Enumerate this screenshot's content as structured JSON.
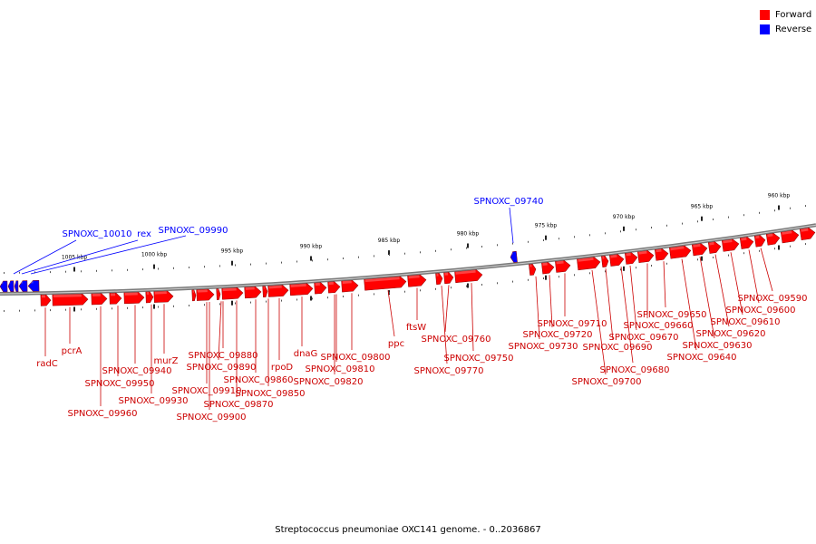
{
  "legend": {
    "forward_label": "Forward",
    "reverse_label": "Reverse",
    "forward_color": "#ff0000",
    "reverse_color": "#0000ff"
  },
  "caption": "Streptococcus pneumoniae OXC141 genome. - 0..2036867",
  "ticks": [
    "1005 kbp",
    "1000 kbp",
    "995 kbp",
    "990 kbp",
    "985 kbp",
    "980 kbp",
    "975 kbp",
    "970 kbp",
    "965 kbp",
    "960 kbp"
  ],
  "reverse_labels": [
    "SPNOXC_10010",
    "rex",
    "SPNOXC_09990",
    "SPNOXC_09740"
  ],
  "forward_labels": [
    "radC",
    "pcrA",
    "SPNOXC_09960",
    "SPNOXC_09950",
    "SPNOXC_09940",
    "SPNOXC_09930",
    "murZ",
    "SPNOXC_09910",
    "SPNOXC_09900",
    "SPNOXC_09890",
    "SPNOXC_09880",
    "SPNOXC_09870",
    "SPNOXC_09860",
    "SPNOXC_09850",
    "rpoD",
    "dnaG",
    "SPNOXC_09820",
    "SPNOXC_09810",
    "SPNOXC_09800",
    "ppc",
    "ftsW",
    "SPNOXC_09770",
    "SPNOXC_09760",
    "SPNOXC_09750",
    "SPNOXC_09730",
    "SPNOXC_09720",
    "SPNOXC_09710",
    "SPNOXC_09700",
    "SPNOXC_09690",
    "SPNOXC_09680",
    "SPNOXC_09670",
    "SPNOXC_09660",
    "SPNOXC_09650",
    "SPNOXC_09640",
    "SPNOXC_09630",
    "SPNOXC_09620",
    "SPNOXC_09610",
    "SPNOXC_09600",
    "SPNOXC_09590"
  ]
}
